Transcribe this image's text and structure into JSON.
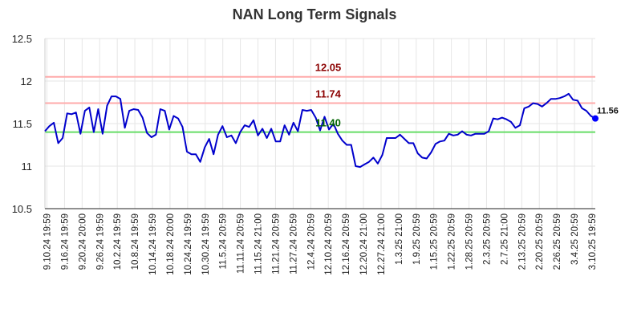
{
  "chart_data": {
    "type": "line",
    "title": "NAN Long Term Signals",
    "xlabel": "",
    "ylabel": "",
    "ylim": [
      10.5,
      12.5
    ],
    "yticks": [
      "10.5",
      "11",
      "11.5",
      "12",
      "12.5"
    ],
    "xticks": [
      "9.10.24 19:59",
      "9.16.24 19:59",
      "9.20.24 20:00",
      "9.26.24 19:59",
      "10.2.24 19:59",
      "10.8.24 19:59",
      "10.14.24 19:59",
      "10.18.24 20:00",
      "10.24.24 19:59",
      "10.30.24 19:59",
      "11.5.24 20:59",
      "11.11.24 20:59",
      "11.15.24 21:00",
      "11.21.24 20:59",
      "11.27.24 20:59",
      "12.4.24 20:59",
      "12.10.24 20:59",
      "12.16.24 20:59",
      "12.20.24 21:00",
      "12.27.24 21:00",
      "1.3.25 21:00",
      "1.9.25 20:59",
      "1.15.25 20:59",
      "1.22.25 20:59",
      "1.28.25 20:59",
      "2.3.25 20:59",
      "2.7.25 21:00",
      "2.13.25 20:59",
      "2.20.25 20:59",
      "2.26.25 20:59",
      "3.4.25 20:59",
      "3.10.25 19:59"
    ],
    "grid": true,
    "series": [
      {
        "color": "#0000cc",
        "values": [
          11.41,
          11.47,
          11.51,
          11.27,
          11.33,
          11.62,
          11.61,
          11.63,
          11.38,
          11.65,
          11.69,
          11.4,
          11.67,
          11.38,
          11.71,
          11.82,
          11.82,
          11.79,
          11.45,
          11.65,
          11.67,
          11.66,
          11.57,
          11.39,
          11.34,
          11.37,
          11.67,
          11.65,
          11.43,
          11.59,
          11.56,
          11.46,
          11.17,
          11.14,
          11.14,
          11.05,
          11.22,
          11.32,
          11.14,
          11.37,
          11.47,
          11.34,
          11.36,
          11.27,
          11.4,
          11.48,
          11.46,
          11.54,
          11.36,
          11.44,
          11.33,
          11.44,
          11.29,
          11.29,
          11.48,
          11.37,
          11.51,
          11.41,
          11.66,
          11.65,
          11.66,
          11.57,
          11.42,
          11.58,
          11.43,
          11.5,
          11.38,
          11.3,
          11.25,
          11.25,
          11.0,
          10.99,
          11.02,
          11.05,
          11.1,
          11.03,
          11.13,
          11.33,
          11.33,
          11.33,
          11.37,
          11.32,
          11.27,
          11.27,
          11.15,
          11.1,
          11.09,
          11.16,
          11.26,
          11.29,
          11.3,
          11.38,
          11.36,
          11.37,
          11.41,
          11.37,
          11.36,
          11.38,
          11.38,
          11.38,
          11.41,
          11.56,
          11.55,
          11.57,
          11.55,
          11.52,
          11.45,
          11.48,
          11.68,
          11.7,
          11.74,
          11.73,
          11.7,
          11.74,
          11.79,
          11.79,
          11.8,
          11.82,
          11.85,
          11.78,
          11.77,
          11.68,
          11.65,
          11.59,
          11.56
        ]
      }
    ],
    "reference_lines": [
      {
        "value": 12.05,
        "label": "12.05",
        "color": "#ffaaaa",
        "label_color": "#8b0000"
      },
      {
        "value": 11.74,
        "label": "11.74",
        "color": "#ffaaaa",
        "label_color": "#8b0000"
      },
      {
        "value": 11.4,
        "label": "11.40",
        "color": "#66dd66",
        "label_color": "#006400"
      }
    ],
    "last_value_label": "11.56",
    "last_point_color": "#0000ff"
  }
}
